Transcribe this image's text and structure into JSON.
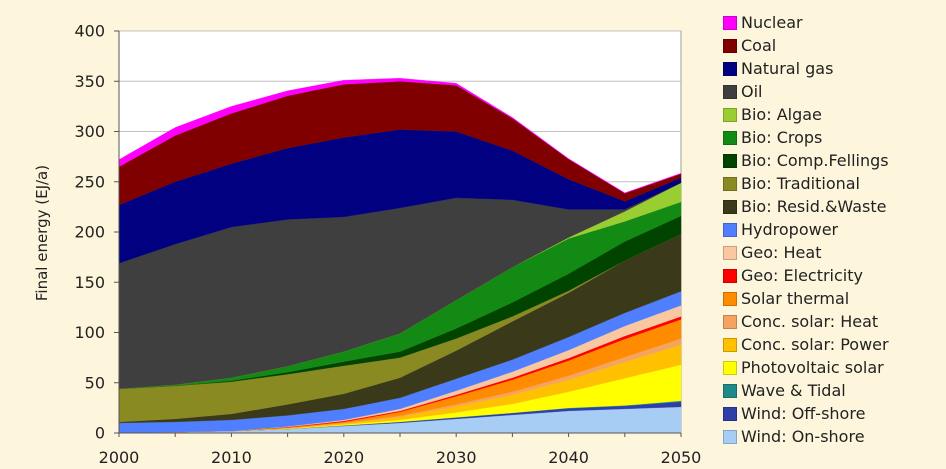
{
  "chart_data": {
    "type": "area",
    "stacked": true,
    "title": "",
    "xlabel": "",
    "ylabel": "Final energy (EJ/a)",
    "x": [
      2000,
      2005,
      2010,
      2015,
      2020,
      2025,
      2030,
      2035,
      2040,
      2045,
      2050
    ],
    "xticks": [
      "2000",
      "2010",
      "2020",
      "2030",
      "2040",
      "2050"
    ],
    "yticks": [
      "0",
      "50",
      "100",
      "150",
      "200",
      "250",
      "300",
      "350",
      "400"
    ],
    "ylim": [
      0,
      400
    ],
    "grid": "horizontal",
    "legend_position": "right",
    "series": [
      {
        "name": "Wind: On-shore",
        "color": "#a8cdf5",
        "values": [
          0,
          1,
          2,
          4,
          7,
          10,
          14,
          18,
          22,
          24,
          26
        ]
      },
      {
        "name": "Wind: Off-shore",
        "color": "#2e3fa8",
        "values": [
          0,
          0,
          0,
          0,
          0.5,
          1,
          1.5,
          2,
          2.5,
          3,
          5
        ]
      },
      {
        "name": "Wave & Tidal",
        "color": "#1f8a8a",
        "values": [
          0,
          0,
          0,
          0,
          0,
          0,
          0,
          0,
          0.5,
          0.5,
          1
        ]
      },
      {
        "name": "Photovoltaic solar",
        "color": "#ffff00",
        "values": [
          0,
          0,
          0,
          0.5,
          1,
          2,
          5,
          9,
          16,
          27,
          36
        ]
      },
      {
        "name": "Conc. solar: Power",
        "color": "#ffc000",
        "values": [
          0,
          0,
          0,
          0.5,
          1,
          3,
          6,
          9,
          12,
          16,
          20
        ]
      },
      {
        "name": "Conc. solar: Heat",
        "color": "#f4a460",
        "values": [
          0,
          0,
          0,
          0,
          0.5,
          1,
          2,
          3,
          4,
          5,
          6
        ]
      },
      {
        "name": "Solar thermal",
        "color": "#ff8c00",
        "values": [
          0,
          0,
          0,
          0.5,
          1,
          4,
          8,
          12,
          15,
          18,
          19
        ]
      },
      {
        "name": "Geo: Electricity",
        "color": "#ff0000",
        "values": [
          0,
          0,
          0,
          0.5,
          1,
          1,
          1.5,
          2,
          2.5,
          3,
          3
        ]
      },
      {
        "name": "Geo: Heat",
        "color": "#f9c8a0",
        "values": [
          0,
          0,
          0,
          0.5,
          1,
          2,
          4,
          6,
          8,
          10,
          11
        ]
      },
      {
        "name": "Hydropower",
        "color": "#4f7fff",
        "values": [
          10,
          10,
          11,
          11,
          11,
          11,
          12,
          12,
          13,
          13,
          14
        ]
      },
      {
        "name": "Bio: Resid.&Waste",
        "color": "#3a3a1a",
        "values": [
          1,
          3,
          6,
          11,
          15,
          20,
          28,
          38,
          44,
          52,
          57
        ]
      },
      {
        "name": "Bio: Traditional",
        "color": "#8a8a22",
        "values": [
          33,
          33,
          32,
          30,
          28,
          20,
          12,
          5,
          2,
          0,
          0
        ]
      },
      {
        "name": "Bio: Comp.Fellings",
        "color": "#004400",
        "values": [
          0,
          0,
          1,
          2,
          4,
          6,
          10,
          14,
          17,
          19,
          18
        ]
      },
      {
        "name": "Bio: Crops",
        "color": "#138a13",
        "values": [
          0,
          1,
          3,
          6,
          10,
          18,
          28,
          35,
          35,
          20,
          14
        ]
      },
      {
        "name": "Bio: Algae",
        "color": "#9acd32",
        "values": [
          0,
          0,
          0,
          0,
          0,
          0,
          0,
          0,
          1,
          10,
          19
        ]
      },
      {
        "name": "Oil",
        "color": "#3f3f3f",
        "values": [
          125,
          140,
          150,
          146,
          134,
          125,
          102,
          67,
          28,
          2,
          0
        ]
      },
      {
        "name": "Natural gas",
        "color": "#000080",
        "values": [
          58,
          62,
          63,
          71,
          79,
          78,
          66,
          49,
          30,
          8,
          5
        ]
      },
      {
        "name": "Coal",
        "color": "#800000",
        "values": [
          38,
          46,
          50,
          52,
          53,
          48,
          46,
          32,
          20,
          8,
          4
        ]
      },
      {
        "name": "Nuclear",
        "color": "#ff00ff",
        "values": [
          7,
          8,
          7,
          5,
          4,
          3,
          2,
          1,
          0.5,
          0.5,
          0.5
        ]
      }
    ]
  }
}
